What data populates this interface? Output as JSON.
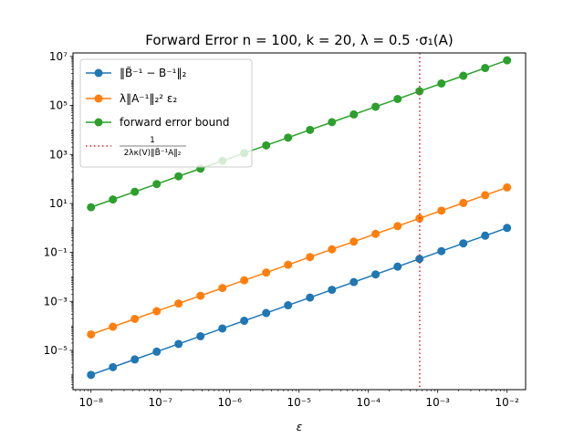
{
  "chart_data": {
    "type": "line",
    "title": "Forward Error n = 100, k = 20, λ = 0.5 ·σ₁(A)",
    "xlabel": "ε",
    "ylabel": "",
    "xscale": "log",
    "yscale": "log",
    "xlim": [
      5.5e-09,
      0.0185
    ],
    "ylim": [
      2.5e-07,
      14000000.0
    ],
    "grid": false,
    "legend_position": "top-left",
    "x_tick_labels": [
      "10⁻⁸",
      "10⁻⁷",
      "10⁻⁶",
      "10⁻⁵",
      "10⁻⁴",
      "10⁻³",
      "10⁻²"
    ],
    "x_tick_values": [
      1e-08,
      1e-07,
      1e-06,
      1e-05,
      0.0001,
      0.001,
      0.01
    ],
    "y_tick_labels": [
      "10⁻⁵",
      "10⁻³",
      "10⁻¹",
      "10¹",
      "10³",
      "10⁵",
      "10⁷"
    ],
    "y_tick_values": [
      1e-05,
      0.001,
      0.1,
      10.0,
      1000.0,
      100000.0,
      10000000.0
    ],
    "x": [
      1e-08,
      2.07e-08,
      4.28e-08,
      8.86e-08,
      1.83e-07,
      3.79e-07,
      7.85e-07,
      1.62e-06,
      3.36e-06,
      6.95e-06,
      1.44e-05,
      2.98e-05,
      6.16e-05,
      0.000127,
      0.000264,
      0.000546,
      0.00113,
      0.00234,
      0.00483,
      0.01
    ],
    "series": [
      {
        "name": "‖B̃⁻¹ − B⁻¹‖₂",
        "color": "#1f77b4",
        "marker": "circle",
        "values": [
          1e-06,
          2.07e-06,
          4.28e-06,
          8.86e-06,
          1.83e-05,
          3.79e-05,
          7.85e-05,
          0.000162,
          0.000336,
          0.000695,
          0.00144,
          0.00298,
          0.00616,
          0.0127,
          0.0264,
          0.0546,
          0.113,
          0.234,
          0.483,
          1.0
        ]
      },
      {
        "name": "λ‖A⁻¹‖₂² ε₂",
        "color": "#ff7f0e",
        "marker": "circle",
        "values": [
          4.5e-05,
          9.3e-05,
          0.000193,
          0.000399,
          0.000824,
          0.00171,
          0.00353,
          0.00729,
          0.0151,
          0.0313,
          0.0648,
          0.134,
          0.277,
          0.572,
          1.19,
          2.46,
          5.09,
          10.5,
          21.7,
          45.0
        ]
      },
      {
        "name": "forward error bound",
        "color": "#2ca02c",
        "marker": "circle",
        "values": [
          7.0,
          14.5,
          30.0,
          62.0,
          128,
          265,
          550,
          1135,
          2350,
          4865,
          10080,
          20860,
          43120,
          88900,
          184800,
          382200,
          791000,
          1638000,
          3381000,
          7000000
        ]
      }
    ],
    "vlines": [
      {
        "name": "1 / (2λκ(V)‖B̃⁻¹A‖₂)",
        "legend_numerator": "1",
        "legend_denominator": "2λκ(V)‖B̃⁻¹A‖₂",
        "x": 0.00055,
        "color": "#d62728",
        "style": "dotted"
      }
    ]
  }
}
